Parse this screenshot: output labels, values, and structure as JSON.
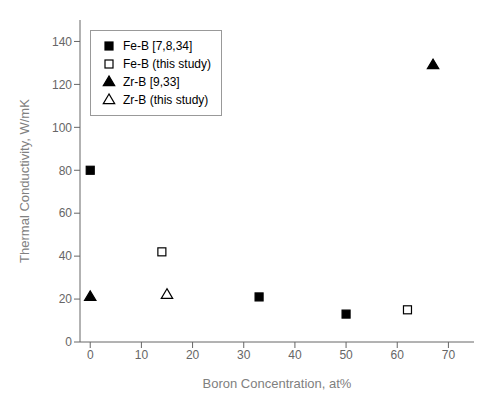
{
  "chart_data": {
    "type": "scatter",
    "xlabel": "Boron Concentration, at%",
    "ylabel": "Thermal Conductivity, W/mK",
    "xlim": [
      -2,
      75
    ],
    "ylim": [
      0,
      150
    ],
    "xticks": [
      0,
      10,
      20,
      30,
      40,
      50,
      60,
      70
    ],
    "yticks": [
      0,
      20,
      40,
      60,
      80,
      100,
      120,
      140
    ],
    "grid": false,
    "legend": "upper left",
    "series": [
      {
        "name": "Fe-B [7,8,34]",
        "x": [
          0,
          33,
          50
        ],
        "values": [
          80,
          21,
          13
        ],
        "marker": "square",
        "color": "black"
      },
      {
        "name": "Fe-B (this study)",
        "x": [
          14,
          62
        ],
        "values": [
          42,
          15
        ],
        "marker": "square-open",
        "color": "black"
      },
      {
        "name": "Zr-B [9,33]",
        "x": [
          0,
          67
        ],
        "values": [
          21,
          129
        ],
        "marker": "triangle",
        "color": "black"
      },
      {
        "name": "Zr-B (this study)",
        "x": [
          15
        ],
        "values": [
          22
        ],
        "marker": "triangle-open",
        "color": "black"
      }
    ]
  }
}
